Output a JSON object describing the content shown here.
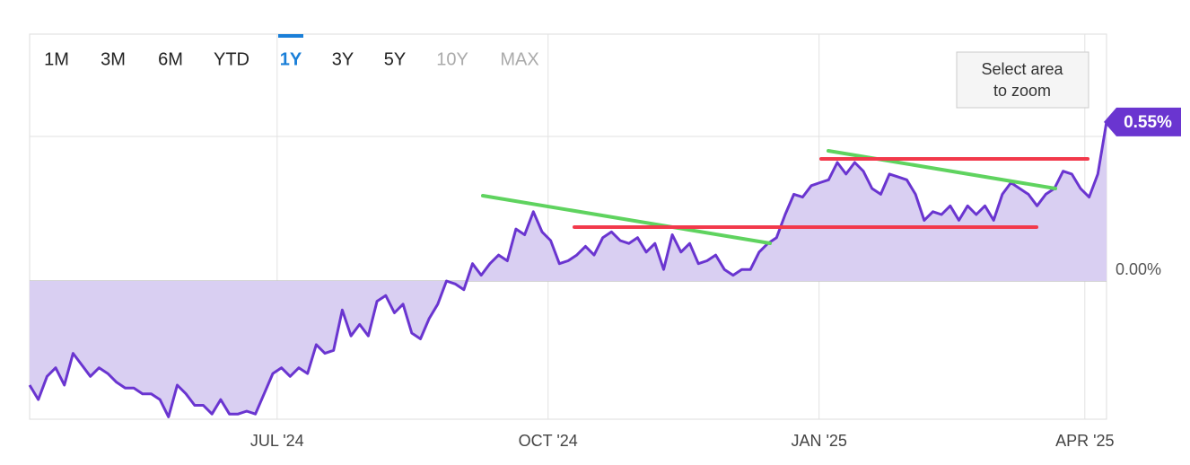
{
  "toolbar": {
    "ranges": [
      "1M",
      "3M",
      "6M",
      "YTD",
      "1Y",
      "3Y",
      "5Y",
      "10Y",
      "MAX"
    ],
    "active": 4,
    "disabled": [
      7,
      8
    ]
  },
  "zoom_hint": [
    "Select area",
    "to zoom"
  ],
  "chart_data": {
    "type": "area",
    "series": [
      {
        "color": "#6a35d0",
        "fill": "#d9cff2",
        "values": [
          -0.36,
          -0.41,
          -0.33,
          -0.3,
          -0.36,
          -0.25,
          -0.29,
          -0.33,
          -0.3,
          -0.32,
          -0.35,
          -0.37,
          -0.37,
          -0.39,
          -0.39,
          -0.41,
          -0.47,
          -0.36,
          -0.39,
          -0.43,
          -0.43,
          -0.46,
          -0.41,
          -0.46,
          -0.46,
          -0.45,
          -0.46,
          -0.39,
          -0.32,
          -0.3,
          -0.33,
          -0.3,
          -0.32,
          -0.22,
          -0.25,
          -0.24,
          -0.1,
          -0.19,
          -0.15,
          -0.19,
          -0.07,
          -0.05,
          -0.11,
          -0.08,
          -0.18,
          -0.2,
          -0.13,
          -0.08,
          0.0,
          -0.01,
          -0.03,
          0.06,
          0.02,
          0.06,
          0.09,
          0.07,
          0.18,
          0.16,
          0.24,
          0.17,
          0.14,
          0.06,
          0.07,
          0.09,
          0.12,
          0.09,
          0.15,
          0.17,
          0.14,
          0.13,
          0.15,
          0.1,
          0.13,
          0.04,
          0.16,
          0.1,
          0.13,
          0.06,
          0.07,
          0.09,
          0.04,
          0.02,
          0.04,
          0.04,
          0.1,
          0.13,
          0.15,
          0.23,
          0.3,
          0.29,
          0.33,
          0.34,
          0.35,
          0.41,
          0.37,
          0.41,
          0.38,
          0.32,
          0.3,
          0.37,
          0.36,
          0.35,
          0.3,
          0.21,
          0.24,
          0.23,
          0.26,
          0.21,
          0.26,
          0.23,
          0.26,
          0.21,
          0.3,
          0.34,
          0.32,
          0.3,
          0.26,
          0.3,
          0.32,
          0.38,
          0.37,
          0.32,
          0.29,
          0.37,
          0.55
        ],
        "last_label": "0.55%"
      }
    ],
    "xlim": [
      0,
      124
    ],
    "xticks": [
      {
        "value": 28.5,
        "label": "JUL '24"
      },
      {
        "value": 59.7,
        "label": "OCT '24"
      },
      {
        "value": 90.9,
        "label": "JAN '25"
      },
      {
        "value": 121.5,
        "label": "APR '25"
      }
    ],
    "ylim": [
      -0.478,
      0.854
    ],
    "yticks": [
      {
        "value": 0,
        "label": "0.00%"
      },
      {
        "value": 0.5,
        "label": null
      }
    ],
    "grid": true
  }
}
